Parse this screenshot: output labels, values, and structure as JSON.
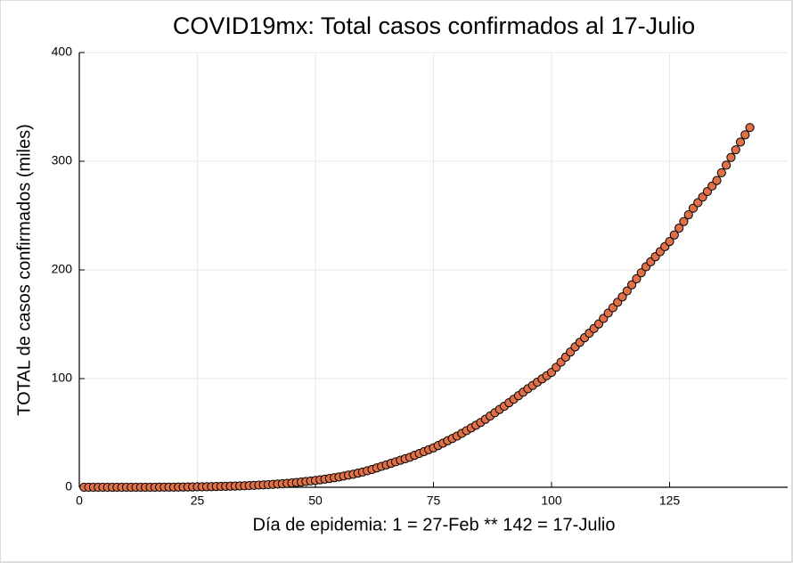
{
  "chart_data": {
    "type": "scatter",
    "title": "COVID19mx: Total casos confirmados al 17-Julio",
    "x_label": "Día de epidemia: 1 = 27-Feb ** 142 = 17-Julio",
    "y_label": "TOTAL de casos confirmados (miles)",
    "color": "#e07048",
    "grid": true,
    "xlim": [
      0,
      150
    ],
    "ylim": [
      0,
      400
    ],
    "xticks": [
      0,
      25,
      50,
      75,
      100,
      125
    ],
    "yticks": [
      0,
      100,
      200,
      300,
      400
    ],
    "x": [
      1,
      2,
      3,
      4,
      5,
      6,
      7,
      8,
      9,
      10,
      11,
      12,
      13,
      14,
      15,
      16,
      17,
      18,
      19,
      20,
      21,
      22,
      23,
      24,
      25,
      26,
      27,
      28,
      29,
      30,
      31,
      32,
      33,
      34,
      35,
      36,
      37,
      38,
      39,
      40,
      41,
      42,
      43,
      44,
      45,
      46,
      47,
      48,
      49,
      50,
      51,
      52,
      53,
      54,
      55,
      56,
      57,
      58,
      59,
      60,
      61,
      62,
      63,
      64,
      65,
      66,
      67,
      68,
      69,
      70,
      71,
      72,
      73,
      74,
      75,
      76,
      77,
      78,
      79,
      80,
      81,
      82,
      83,
      84,
      85,
      86,
      87,
      88,
      89,
      90,
      91,
      92,
      93,
      94,
      95,
      96,
      97,
      98,
      99,
      100,
      101,
      102,
      103,
      104,
      105,
      106,
      107,
      108,
      109,
      110,
      111,
      112,
      113,
      114,
      115,
      116,
      117,
      118,
      119,
      120,
      121,
      122,
      123,
      124,
      125,
      126,
      127,
      128,
      129,
      130,
      131,
      132,
      133,
      134,
      135,
      136,
      137,
      138,
      139,
      140,
      141,
      142
    ],
    "values": [
      0,
      0,
      0,
      0,
      0,
      0,
      0,
      0,
      0,
      0,
      0,
      0,
      0,
      0,
      0,
      0,
      0.1,
      0.1,
      0.1,
      0.1,
      0.2,
      0.2,
      0.3,
      0.3,
      0.4,
      0.4,
      0.5,
      0.6,
      0.7,
      0.8,
      0.9,
      1.0,
      1.1,
      1.2,
      1.4,
      1.6,
      1.8,
      2.0,
      2.2,
      2.4,
      2.7,
      3.0,
      3.3,
      3.6,
      4.0,
      4.4,
      4.8,
      5.3,
      5.8,
      6.3,
      6.9,
      7.5,
      8.1,
      8.8,
      9.5,
      10.3,
      11.2,
      12.0,
      13.0,
      14.0,
      15.2,
      16.4,
      17.8,
      19.2,
      20.6,
      22.0,
      23.4,
      24.9,
      26.2,
      27.6,
      29.4,
      31.1,
      32.8,
      34.6,
      36.3,
      38.4,
      40.6,
      42.8,
      44.9,
      47.1,
      49.6,
      52.1,
      54.6,
      57.1,
      59.6,
      62.6,
      65.6,
      68.6,
      71.6,
      74.6,
      77.8,
      81.0,
      84.2,
      87.5,
      90.7,
      93.7,
      96.7,
      99.7,
      102.7,
      105.7,
      110.4,
      115.1,
      119.8,
      124.5,
      129.2,
      133.4,
      137.6,
      141.8,
      146.1,
      150.3,
      155.3,
      160.3,
      165.2,
      170.2,
      175.2,
      180.7,
      186.3,
      191.8,
      197.4,
      202.9,
      207.5,
      212.2,
      216.8,
      221.4,
      226.1,
      232.2,
      238.4,
      244.5,
      250.7,
      256.8,
      261.9,
      267.0,
      272.1,
      277.2,
      282.3,
      289.4,
      296.4,
      303.5,
      310.5,
      317.6,
      324.3,
      331.0
    ]
  }
}
